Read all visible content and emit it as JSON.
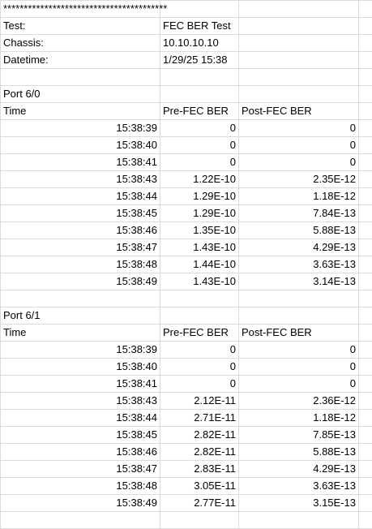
{
  "header": {
    "stars": "****************************************",
    "test_label": "Test:",
    "test_value": "FEC BER Test",
    "chassis_label": "Chassis:",
    "chassis_value": "10.10.10.10",
    "datetime_label": "Datetime:",
    "datetime_value": "1/29/25 15:38"
  },
  "columns": {
    "time": "Time",
    "pre": "Pre-FEC BER",
    "post": "Post-FEC BER"
  },
  "ports": [
    {
      "title": "Port 6/0",
      "rows": [
        {
          "time": "15:38:39",
          "pre": "0",
          "post": "0"
        },
        {
          "time": "15:38:40",
          "pre": "0",
          "post": "0"
        },
        {
          "time": "15:38:41",
          "pre": "0",
          "post": "0"
        },
        {
          "time": "15:38:43",
          "pre": "1.22E-10",
          "post": "2.35E-12"
        },
        {
          "time": "15:38:44",
          "pre": "1.29E-10",
          "post": "1.18E-12"
        },
        {
          "time": "15:38:45",
          "pre": "1.29E-10",
          "post": "7.84E-13"
        },
        {
          "time": "15:38:46",
          "pre": "1.35E-10",
          "post": "5.88E-13"
        },
        {
          "time": "15:38:47",
          "pre": "1.43E-10",
          "post": "4.29E-13"
        },
        {
          "time": "15:38:48",
          "pre": "1.44E-10",
          "post": "3.63E-13"
        },
        {
          "time": "15:38:49",
          "pre": "1.43E-10",
          "post": "3.14E-13"
        }
      ]
    },
    {
      "title": "Port 6/1",
      "rows": [
        {
          "time": "15:38:39",
          "pre": "0",
          "post": "0"
        },
        {
          "time": "15:38:40",
          "pre": "0",
          "post": "0"
        },
        {
          "time": "15:38:41",
          "pre": "0",
          "post": "0"
        },
        {
          "time": "15:38:43",
          "pre": "2.12E-11",
          "post": "2.36E-12"
        },
        {
          "time": "15:38:44",
          "pre": "2.71E-11",
          "post": "1.18E-12"
        },
        {
          "time": "15:38:45",
          "pre": "2.82E-11",
          "post": "7.85E-13"
        },
        {
          "time": "15:38:46",
          "pre": "2.82E-11",
          "post": "5.88E-13"
        },
        {
          "time": "15:38:47",
          "pre": "2.83E-11",
          "post": "4.29E-13"
        },
        {
          "time": "15:38:48",
          "pre": "3.05E-11",
          "post": "3.63E-13"
        },
        {
          "time": "15:38:49",
          "pre": "2.77E-11",
          "post": "3.15E-13"
        }
      ]
    }
  ]
}
